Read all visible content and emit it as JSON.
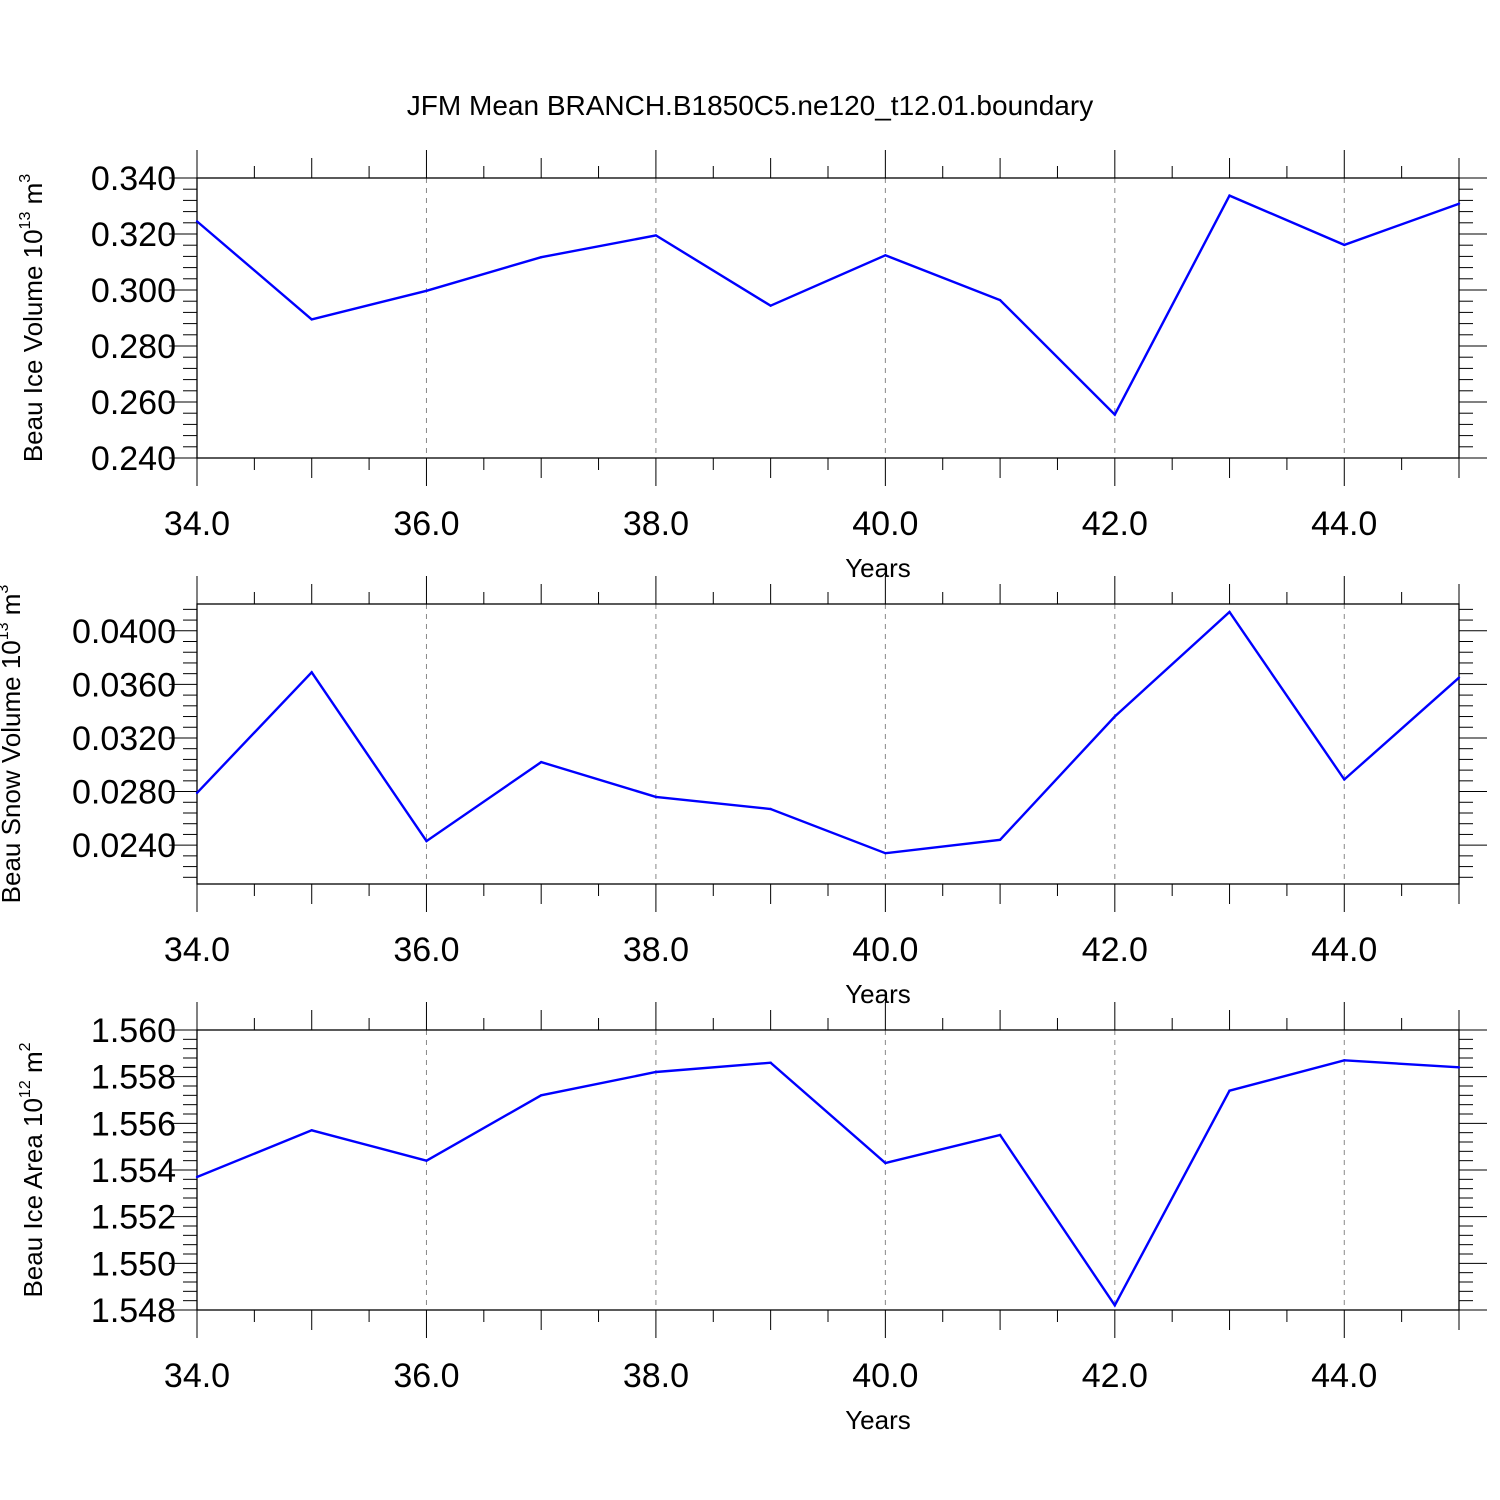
{
  "title": "JFM Mean BRANCH.B1850C5.ne120_t12.01.boundary",
  "colors": {
    "line": "#0000ff",
    "axis": "#000000",
    "grid": "#888888"
  },
  "chart_data": [
    {
      "type": "line",
      "xlabel": "Years",
      "ylabel": {
        "text": "Beau Ice Volume 10",
        "sup": "13",
        "unit": " m",
        "unit_sup": "3"
      },
      "x": [
        34,
        35,
        36,
        37,
        38,
        39,
        40,
        41,
        42,
        43,
        44,
        45
      ],
      "values": [
        0.3245,
        0.2895,
        0.2997,
        0.3117,
        0.3195,
        0.2944,
        0.3124,
        0.2964,
        0.2555,
        0.3337,
        0.3161,
        0.3308
      ],
      "xlim": [
        34,
        45
      ],
      "ylim": [
        0.24,
        0.34
      ],
      "xticks": [
        "34.0",
        "36.0",
        "38.0",
        "40.0",
        "42.0",
        "44.0"
      ],
      "yticks": [
        "0.240",
        "0.260",
        "0.280",
        "0.300",
        "0.320",
        "0.340"
      ],
      "grid": "vertical dashed at major x ticks"
    },
    {
      "type": "line",
      "xlabel": "Years",
      "ylabel": {
        "text": "Beau Snow Volume 10",
        "sup": "13",
        "unit": " m",
        "unit_sup": "3"
      },
      "x": [
        34,
        35,
        36,
        37,
        38,
        39,
        40,
        41,
        42,
        43,
        44,
        45
      ],
      "values": [
        0.0279,
        0.0369,
        0.0243,
        0.0302,
        0.0276,
        0.0267,
        0.0234,
        0.0244,
        0.0336,
        0.0414,
        0.0289,
        0.0365
      ],
      "xlim": [
        34,
        45
      ],
      "ylim": [
        0.0211,
        0.042
      ],
      "xticks": [
        "34.0",
        "36.0",
        "38.0",
        "40.0",
        "42.0",
        "44.0"
      ],
      "yticks": [
        "0.0240",
        "0.0280",
        "0.0320",
        "0.0360",
        "0.0400"
      ],
      "grid": "vertical dashed at major x ticks"
    },
    {
      "type": "line",
      "xlabel": "Years",
      "ylabel": {
        "text": "Beau Ice Area 10",
        "sup": "12",
        "unit": " m",
        "unit_sup": "2"
      },
      "x": [
        34,
        35,
        36,
        37,
        38,
        39,
        40,
        41,
        42,
        43,
        44,
        45
      ],
      "values": [
        1.5537,
        1.5557,
        1.5544,
        1.5572,
        1.5582,
        1.5586,
        1.5543,
        1.5555,
        1.5482,
        1.5574,
        1.5587,
        1.5584
      ],
      "xlim": [
        34,
        45
      ],
      "ylim": [
        1.548,
        1.56
      ],
      "xticks": [
        "34.0",
        "36.0",
        "38.0",
        "40.0",
        "42.0",
        "44.0"
      ],
      "yticks": [
        "1.548",
        "1.550",
        "1.552",
        "1.554",
        "1.556",
        "1.558",
        "1.560"
      ],
      "grid": "vertical dashed at major x ticks"
    }
  ]
}
